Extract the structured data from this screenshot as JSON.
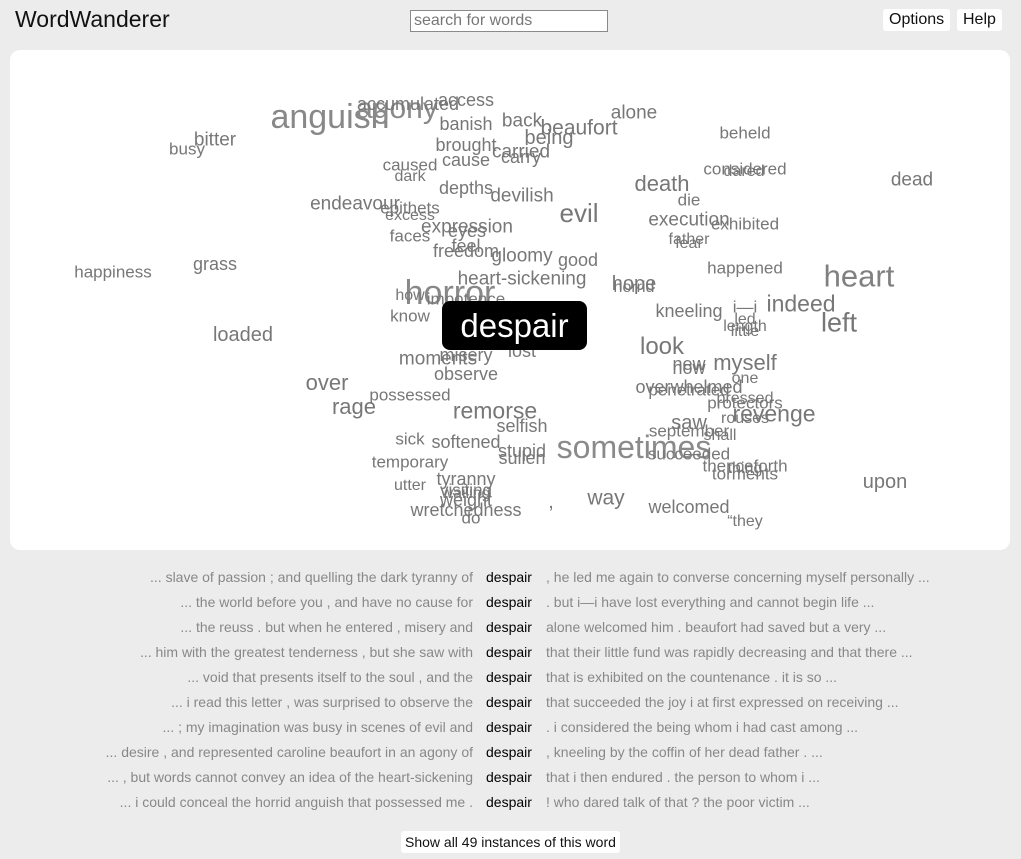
{
  "app": {
    "title": "WordWanderer"
  },
  "search": {
    "placeholder": "search for words"
  },
  "toolbar": {
    "options_label": "Options",
    "help_label": "Help"
  },
  "center_word": "despair",
  "cloud_words": [
    "anguish",
    "agony",
    "accumulated",
    "access",
    "banish",
    "back",
    "beaufort",
    "alone",
    "beheld",
    "bitter",
    "busy",
    "brought",
    "being",
    "carried",
    "carry",
    "caused",
    "cause",
    "considered",
    "dared",
    "dead",
    "death",
    "dark",
    "depths",
    "devilish",
    "die",
    "evil",
    "endeavour",
    "epithets",
    "excess",
    "expression",
    "eyes",
    "execution",
    "exhibited",
    "father",
    "fear",
    "faces",
    "feel",
    "freedom",
    "gloomy",
    "good",
    "happened",
    "heart",
    "happiness",
    "grass",
    "horror",
    "heart-sickening",
    "hope",
    "horrid",
    "how",
    "impotence",
    "know",
    "kneeling",
    "i—i",
    "indeed",
    "led",
    "length",
    "little",
    "left",
    "loaded",
    "look",
    "misery",
    "moments",
    "lost",
    "now",
    "new",
    "myself",
    "one",
    "observe",
    "over",
    "overwhelmed",
    "penetrated",
    "possessed",
    "pressed",
    "protectors",
    "rage",
    "remorse",
    "revenge",
    "rouses",
    "selfish",
    "saw",
    "september",
    "shall",
    "sick",
    "softened",
    "sometimes",
    "stupid",
    "sullen",
    "succeeded",
    "temporary",
    "thenceforth",
    "thing",
    "torments",
    "tyranny",
    "upon",
    "utter",
    "visiting",
    "wailing",
    "weight",
    "way",
    ",",
    "welcomed",
    "wretchedness",
    "do",
    "“they"
  ],
  "kwic": {
    "keyword": "despair",
    "rows": [
      {
        "left": "... slave of passion ; and quelling the dark tyranny of",
        "right": ", he led me again to converse concerning myself personally ..."
      },
      {
        "left": "... the world before you , and have no cause for",
        "right": ". but i—i have lost everything and cannot begin life ..."
      },
      {
        "left": "... the reuss . but when he entered , misery and",
        "right": "alone welcomed him . beaufort had saved but a very ..."
      },
      {
        "left": "... him with the greatest tenderness , but she saw with",
        "right": "that their little fund was rapidly decreasing and that there ..."
      },
      {
        "left": "... void that presents itself to the soul , and the",
        "right": "that is exhibited on the countenance . it is so ..."
      },
      {
        "left": "... i read this letter , was surprised to observe the",
        "right": "that succeeded the joy i at first expressed on receiving ..."
      },
      {
        "left": "... ; my imagination was busy in scenes of evil and",
        "right": ". i considered the being whom i had cast among ..."
      },
      {
        "left": "... desire , and represented caroline beaufort in an agony of",
        "right": ", kneeling by the coffin of her dead father . ..."
      },
      {
        "left": "... , but words cannot convey an idea of the heart-sickening",
        "right": "that i then endured . the person to whom i ..."
      },
      {
        "left": "... i could conceal the horrid anguish that possessed me .",
        "right": "! who dared talk of that ? the poor victim ..."
      }
    ]
  },
  "show_all_label": "Show all 49 instances of this word"
}
